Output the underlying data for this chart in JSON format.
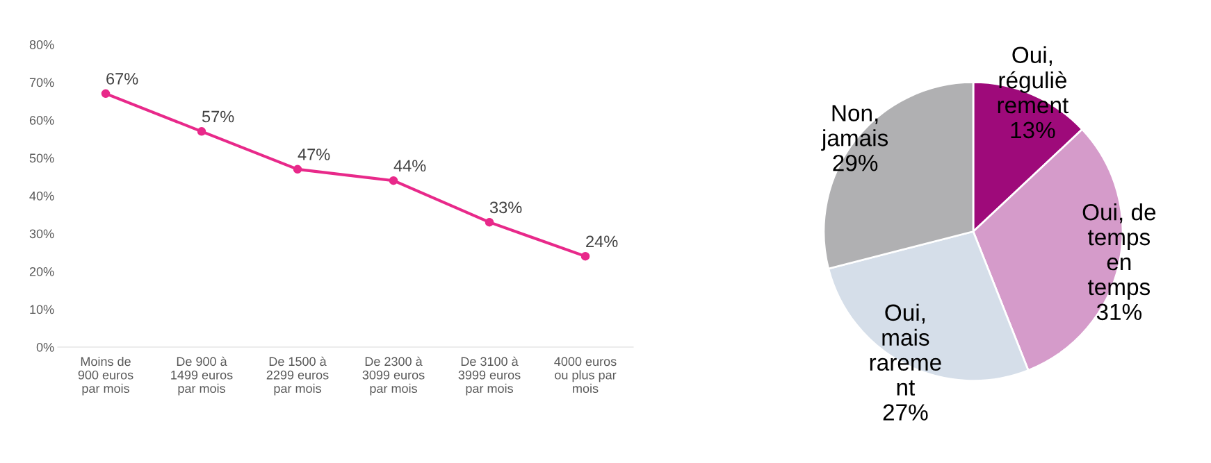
{
  "chart_data": [
    {
      "type": "line",
      "categories": [
        "Moins de\n900 euros\npar mois",
        "De 900 à\n1499 euros\npar mois",
        "De 1500 à\n2299 euros\npar mois",
        "De 2300 à\n3099 euros\npar mois",
        "De 3100 à\n3999 euros\npar mois",
        "4000 euros\nou plus par\nmois"
      ],
      "series": [
        {
          "color": "#e8298a",
          "values": [
            67,
            57,
            47,
            44,
            33,
            24
          ],
          "value_labels": [
            "67%",
            "57%",
            "47%",
            "44%",
            "33%",
            "24%"
          ]
        }
      ],
      "ylim": [
        0,
        80
      ],
      "yticks": [
        {
          "value": 0,
          "label": "0%"
        },
        {
          "value": 10,
          "label": "10%"
        },
        {
          "value": 20,
          "label": "20%"
        },
        {
          "value": 30,
          "label": "30%"
        },
        {
          "value": 40,
          "label": "40%"
        },
        {
          "value": 50,
          "label": "50%"
        },
        {
          "value": 60,
          "label": "60%"
        },
        {
          "value": 70,
          "label": "70%"
        },
        {
          "value": 80,
          "label": "80%"
        }
      ],
      "marker": "circle",
      "grid": false
    },
    {
      "type": "pie",
      "categories": [
        "Oui,\nréguliè\nrement",
        "Oui, de\ntemps\nen\ntemps",
        "Oui,\nmais\nrareme\nnt",
        "Non,\njamais"
      ],
      "values": [
        13,
        31,
        27,
        29
      ],
      "value_labels": [
        "13%",
        "31%",
        "27%",
        "29%"
      ],
      "colors": [
        "#9e0a7a",
        "#d59bca",
        "#d5dee9",
        "#b0b0b2"
      ]
    }
  ]
}
